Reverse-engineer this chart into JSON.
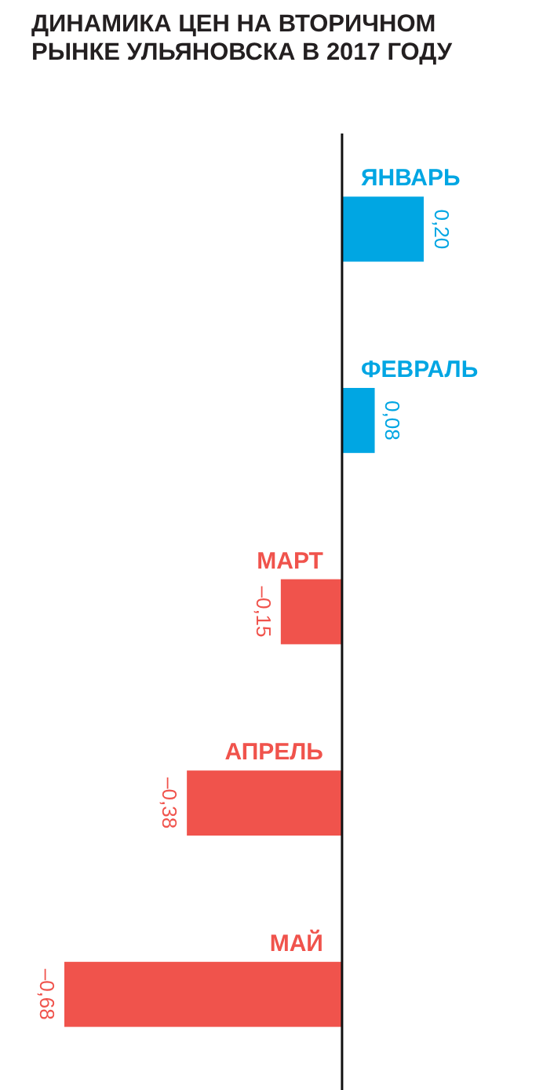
{
  "chart_data": {
    "type": "bar",
    "orientation": "horizontal",
    "title": "ДИНАМИКА ЦЕН НА ВТОРИЧНОМ\nРЫНКЕ УЛЬЯНОВСКА В 2017 ГОДУ",
    "categories": [
      "ЯНВАРЬ",
      "ФЕВРАЛЬ",
      "МАРТ",
      "АПРЕЛЬ",
      "МАЙ"
    ],
    "values": [
      0.2,
      0.08,
      -0.15,
      -0.38,
      -0.68
    ],
    "colors": [
      "#00a6e3",
      "#00a6e3",
      "#f0534c",
      "#f0534c",
      "#f0534c"
    ],
    "value_labels": [
      "0,20",
      "0,08",
      "–0,15",
      "–0,38",
      "–0,68"
    ]
  }
}
